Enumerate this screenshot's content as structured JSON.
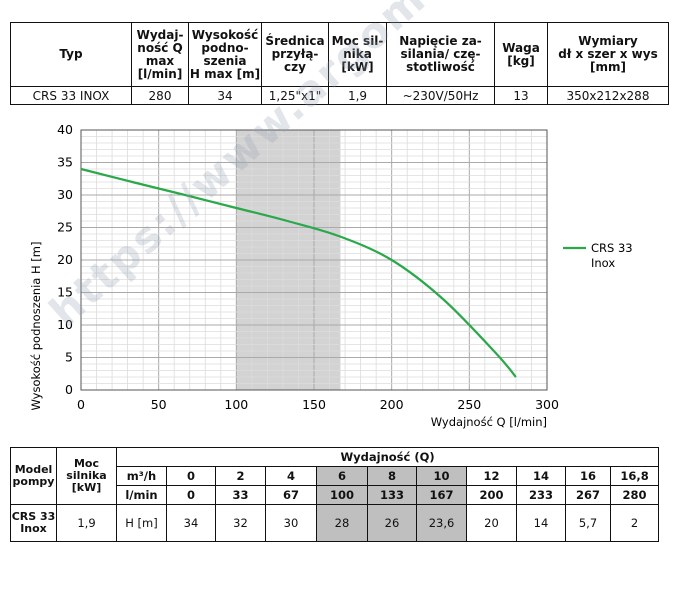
{
  "spec": {
    "headers": [
      "Typ",
      "Wydaj-\nność Q\nmax\n[l/min]",
      "Wysokość\npodno-\nszenia\nH max [m]",
      "Średnica\nprzyłą-\nczy",
      "Moc sil-\nnika\n[kW]",
      "Napięcie za-\nsilania/ czę-\nstotliwość",
      "Waga\n[kg]",
      "Wymiary\ndł x szer x wys\n[mm]"
    ],
    "row": [
      "CRS 33 INOX",
      "280",
      "34",
      "1,25\"x1\"",
      "1,9",
      "~230V/50Hz",
      "13",
      "350x212x288"
    ]
  },
  "chart_data": {
    "type": "line",
    "xlabel": "Wydajność Q [l/min]",
    "ylabel": "Wysokość podnoszenia H [m]",
    "xlim": [
      0,
      300
    ],
    "ylim": [
      0,
      40
    ],
    "xticks": [
      "0",
      "50",
      "100",
      "150",
      "200",
      "250",
      "300"
    ],
    "yticks": [
      "0",
      "5",
      "10",
      "15",
      "20",
      "25",
      "30",
      "35",
      "40"
    ],
    "grid": true,
    "legend_position": "right",
    "shaded_range": [
      100,
      167
    ],
    "shade_color": "#d3d3d3",
    "series": [
      {
        "name": "CRS 33\nInox",
        "color": "#2aa84a",
        "x": [
          0,
          33,
          67,
          100,
          133,
          167,
          200,
          233,
          267,
          280
        ],
        "y": [
          34,
          32,
          30,
          28,
          26,
          23.6,
          20,
          14,
          5.7,
          2
        ]
      }
    ]
  },
  "perf": {
    "model_label": "Model\npompy",
    "power_label": "Moc\nsilnika\n[kW]",
    "group_title": "Wydajność (Q)",
    "m3h_label": "m³/h",
    "lmin_label": "l/min",
    "h_label": "H [m]",
    "model": "CRS 33\nInox",
    "power": "1,9",
    "m3h": [
      "0",
      "2",
      "4",
      "6",
      "8",
      "10",
      "12",
      "14",
      "16",
      "16,8"
    ],
    "lmin": [
      "0",
      "33",
      "67",
      "100",
      "133",
      "167",
      "200",
      "233",
      "267",
      "280"
    ],
    "h": [
      "34",
      "32",
      "30",
      "28",
      "26",
      "23,6",
      "20",
      "14",
      "5,7",
      "2"
    ],
    "shaded_cols": [
      3,
      4,
      5
    ]
  },
  "watermark": "https://www.argomarket.com"
}
